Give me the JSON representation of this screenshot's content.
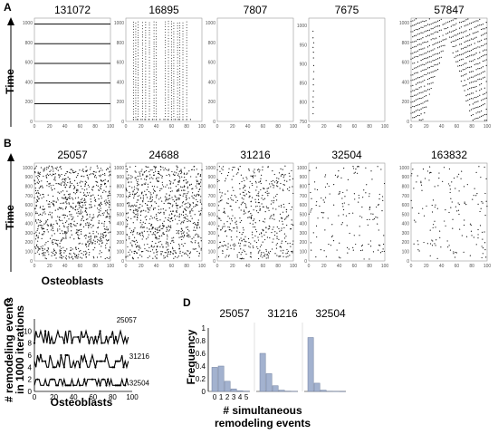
{
  "panels": {
    "A": {
      "letter": "A",
      "ylabel": "Time"
    },
    "B": {
      "letter": "B",
      "ylabel": "Time",
      "xlabel": "Osteoblasts"
    },
    "C": {
      "letter": "C",
      "ylabel_line1": "# remodeling events",
      "ylabel_line2": "in 1000 iterations",
      "xlabel": "Osteoblasts"
    },
    "D": {
      "letter": "D",
      "ylabel": "Frequency",
      "xlabel_line1": "# simultaneous",
      "xlabel_line2": "remodeling events"
    }
  },
  "chart_data": [
    {
      "type": "scatter",
      "panel": "A",
      "title": "131072",
      "pattern": "horizontal-lines",
      "xlim": [
        0,
        100
      ],
      "ylim": [
        0,
        1050
      ],
      "xticks": [
        "0",
        "20",
        "40",
        "60",
        "80",
        "100"
      ],
      "yticks": [
        "0",
        "200",
        "400",
        "600",
        "800",
        "1000"
      ],
      "line_times": [
        180,
        390,
        590,
        790,
        990
      ]
    },
    {
      "type": "scatter",
      "panel": "A",
      "title": "16895",
      "pattern": "vertical-dotted-columns",
      "xlim": [
        0,
        100
      ],
      "ylim": [
        0,
        1050
      ],
      "xticks": [
        "0",
        "20",
        "40",
        "60",
        "80",
        "100"
      ],
      "yticks": [
        "0",
        "200",
        "400",
        "600",
        "800",
        "1000"
      ],
      "columns": [
        10,
        13,
        16,
        22,
        26,
        31,
        37,
        40,
        52,
        56,
        60,
        63,
        68,
        71,
        75,
        80
      ]
    },
    {
      "type": "scatter",
      "panel": "A",
      "title": "7807",
      "pattern": "empty",
      "xlim": [
        0,
        100
      ],
      "ylim": [
        0,
        1050
      ],
      "xticks": [
        "0",
        "20",
        "40",
        "60",
        "80",
        "100"
      ],
      "yticks": [
        "0",
        "200",
        "400",
        "600",
        "800",
        "1000"
      ]
    },
    {
      "type": "scatter",
      "panel": "A",
      "title": "7675",
      "pattern": "single-column",
      "xlim": [
        0,
        100
      ],
      "ylim": [
        750,
        1020
      ],
      "xticks": [
        "0",
        "20",
        "40",
        "60",
        "80",
        "100"
      ],
      "yticks": [
        "750",
        "800",
        "850",
        "900",
        "950",
        "1000"
      ],
      "column_x": 6
    },
    {
      "type": "scatter",
      "panel": "A",
      "title": "57847",
      "pattern": "diagonal-stripes-with-gap",
      "xlim": [
        0,
        100
      ],
      "ylim": [
        0,
        1050
      ],
      "xticks": [
        "0",
        "20",
        "40",
        "60",
        "80",
        "100"
      ],
      "yticks": [
        "0",
        "200",
        "400",
        "600",
        "800",
        "1000"
      ]
    },
    {
      "type": "scatter",
      "panel": "B",
      "title": "25057",
      "pattern": "random-dense",
      "xlim": [
        0,
        100
      ],
      "ylim": [
        0,
        1050
      ],
      "n_points": 900,
      "xticks": [
        "0",
        "20",
        "40",
        "60",
        "80",
        "100"
      ],
      "yticks": [
        "0",
        "100",
        "200",
        "300",
        "400",
        "500",
        "600",
        "700",
        "800",
        "900",
        "1000"
      ]
    },
    {
      "type": "scatter",
      "panel": "B",
      "title": "24688",
      "pattern": "random-dense",
      "xlim": [
        0,
        100
      ],
      "ylim": [
        0,
        1050
      ],
      "n_points": 850,
      "xticks": [
        "0",
        "20",
        "40",
        "60",
        "80",
        "100"
      ],
      "yticks": [
        "0",
        "100",
        "200",
        "300",
        "400",
        "500",
        "600",
        "700",
        "800",
        "900",
        "1000"
      ]
    },
    {
      "type": "scatter",
      "panel": "B",
      "title": "31216",
      "pattern": "random-medium",
      "xlim": [
        0,
        100
      ],
      "ylim": [
        0,
        1050
      ],
      "n_points": 520,
      "xticks": [
        "0",
        "20",
        "40",
        "60",
        "80",
        "100"
      ],
      "yticks": [
        "0",
        "100",
        "200",
        "300",
        "400",
        "500",
        "600",
        "700",
        "800",
        "900",
        "1000"
      ]
    },
    {
      "type": "scatter",
      "panel": "B",
      "title": "32504",
      "pattern": "random-sparse",
      "xlim": [
        0,
        100
      ],
      "ylim": [
        0,
        1050
      ],
      "n_points": 160,
      "xticks": [
        "0",
        "20",
        "40",
        "60",
        "80",
        "100"
      ],
      "yticks": [
        "0",
        "100",
        "200",
        "300",
        "400",
        "500",
        "600",
        "700",
        "800",
        "900",
        "1000"
      ]
    },
    {
      "type": "scatter",
      "panel": "B",
      "title": "163832",
      "pattern": "random-sparse",
      "xlim": [
        0,
        100
      ],
      "ylim": [
        0,
        1050
      ],
      "n_points": 150,
      "xticks": [
        "0",
        "20",
        "40",
        "60",
        "80",
        "100"
      ],
      "yticks": [
        "0",
        "100",
        "200",
        "300",
        "400",
        "500",
        "600",
        "700",
        "800",
        "900",
        "1000"
      ]
    },
    {
      "type": "line",
      "panel": "C",
      "xlim": [
        0,
        100
      ],
      "ylim": [
        0,
        12
      ],
      "xticks": [
        "0",
        "20",
        "40",
        "60",
        "80",
        "100"
      ],
      "yticks": [
        "0",
        "2",
        "4",
        "6",
        "8",
        "10"
      ],
      "series": [
        {
          "name": "25057",
          "baseline": 9,
          "spread": 1.4
        },
        {
          "name": "31216",
          "baseline": 5,
          "spread": 1.0
        },
        {
          "name": "32504",
          "baseline": 1.4,
          "spread": 0.9
        }
      ]
    },
    {
      "type": "bar",
      "panel": "D",
      "title": "25057",
      "categories": [
        "0",
        "1",
        "2",
        "3",
        "4",
        "5"
      ],
      "values": [
        0.38,
        0.4,
        0.16,
        0.04,
        0.01,
        0.005
      ],
      "ylim": [
        0,
        1
      ],
      "yticks": [
        "0",
        "0.2",
        "0.4",
        "0.6",
        "0.8",
        "1"
      ]
    },
    {
      "type": "bar",
      "panel": "D",
      "title": "31216",
      "categories": [
        "0",
        "1",
        "2",
        "3",
        "4",
        "5"
      ],
      "values": [
        0.6,
        0.28,
        0.09,
        0.02,
        0.005,
        0.002
      ],
      "ylim": [
        0,
        1
      ]
    },
    {
      "type": "bar",
      "panel": "D",
      "title": "32504",
      "categories": [
        "0",
        "1",
        "2",
        "3",
        "4",
        "5"
      ],
      "values": [
        0.85,
        0.13,
        0.02,
        0.004,
        0.001,
        0.0
      ],
      "ylim": [
        0,
        1
      ]
    }
  ]
}
